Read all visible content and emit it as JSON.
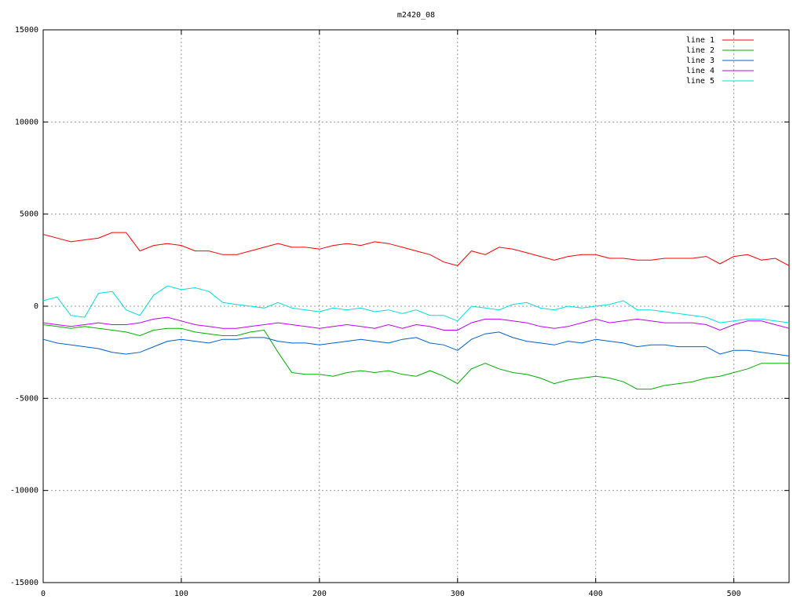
{
  "chart_data": {
    "type": "line",
    "title": "m2420_08",
    "x": [
      0,
      10,
      20,
      30,
      40,
      50,
      60,
      70,
      80,
      90,
      100,
      110,
      120,
      130,
      140,
      150,
      160,
      170,
      180,
      190,
      200,
      210,
      220,
      230,
      240,
      250,
      260,
      270,
      280,
      290,
      300,
      310,
      320,
      330,
      340,
      350,
      360,
      370,
      380,
      390,
      400,
      410,
      420,
      430,
      440,
      450,
      460,
      470,
      480,
      490,
      500,
      510,
      520,
      530,
      540
    ],
    "series": [
      {
        "name": "line 1",
        "color": "#ff0000",
        "values": [
          3900,
          3700,
          3500,
          3600,
          3700,
          4000,
          4000,
          3000,
          3300,
          3400,
          3300,
          3000,
          3000,
          2800,
          2800,
          3000,
          3200,
          3400,
          3200,
          3200,
          3100,
          3300,
          3400,
          3300,
          3500,
          3400,
          3200,
          3000,
          2800,
          2400,
          2200,
          3000,
          2800,
          3200,
          3100,
          2900,
          2700,
          2500,
          2700,
          2800,
          2800,
          2600,
          2600,
          2500,
          2500,
          2600,
          2600,
          2600,
          2700,
          2300,
          2700,
          2800,
          2500,
          2600,
          2200
        ]
      },
      {
        "name": "line 2",
        "color": "#00b000",
        "values": [
          -1000,
          -1100,
          -1200,
          -1100,
          -1200,
          -1300,
          -1400,
          -1600,
          -1300,
          -1200,
          -1200,
          -1400,
          -1500,
          -1600,
          -1600,
          -1400,
          -1300,
          -2500,
          -3600,
          -3700,
          -3700,
          -3800,
          -3600,
          -3500,
          -3600,
          -3500,
          -3700,
          -3800,
          -3500,
          -3800,
          -4200,
          -3400,
          -3100,
          -3400,
          -3600,
          -3700,
          -3900,
          -4200,
          -4000,
          -3900,
          -3800,
          -3900,
          -4100,
          -4500,
          -4500,
          -4300,
          -4200,
          -4100,
          -3900,
          -3800,
          -3600,
          -3400,
          -3100,
          -3100,
          -3100
        ]
      },
      {
        "name": "line 3",
        "color": "#0060d0",
        "values": [
          -1800,
          -2000,
          -2100,
          -2200,
          -2300,
          -2500,
          -2600,
          -2500,
          -2200,
          -1900,
          -1800,
          -1900,
          -2000,
          -1800,
          -1800,
          -1700,
          -1700,
          -1900,
          -2000,
          -2000,
          -2100,
          -2000,
          -1900,
          -1800,
          -1900,
          -2000,
          -1800,
          -1700,
          -2000,
          -2100,
          -2400,
          -1800,
          -1500,
          -1400,
          -1700,
          -1900,
          -2000,
          -2100,
          -1900,
          -2000,
          -1800,
          -1900,
          -2000,
          -2200,
          -2100,
          -2100,
          -2200,
          -2200,
          -2200,
          -2600,
          -2400,
          -2400,
          -2500,
          -2600,
          -2700
        ]
      },
      {
        "name": "line 4",
        "color": "#c000ff",
        "values": [
          -900,
          -1000,
          -1100,
          -1000,
          -900,
          -1000,
          -1000,
          -900,
          -700,
          -600,
          -800,
          -1000,
          -1100,
          -1200,
          -1200,
          -1100,
          -1000,
          -900,
          -1000,
          -1100,
          -1200,
          -1100,
          -1000,
          -1100,
          -1200,
          -1000,
          -1200,
          -1000,
          -1100,
          -1300,
          -1300,
          -900,
          -700,
          -700,
          -800,
          -900,
          -1100,
          -1200,
          -1100,
          -900,
          -700,
          -900,
          -800,
          -700,
          -800,
          -900,
          -900,
          -900,
          -1000,
          -1300,
          -1000,
          -800,
          -800,
          -1000,
          -1200
        ]
      },
      {
        "name": "line 5",
        "color": "#00e0e0",
        "values": [
          300,
          500,
          -500,
          -600,
          700,
          800,
          -200,
          -500,
          600,
          1100,
          900,
          1000,
          800,
          200,
          100,
          0,
          -100,
          200,
          -100,
          -200,
          -300,
          -100,
          -200,
          -100,
          -300,
          -200,
          -400,
          -200,
          -500,
          -500,
          -800,
          0,
          -100,
          -200,
          100,
          200,
          -100,
          -200,
          0,
          -100,
          0,
          100,
          300,
          -200,
          -200,
          -300,
          -400,
          -500,
          -600,
          -900,
          -800,
          -700,
          -700,
          -800,
          -900
        ]
      }
    ],
    "xlim": [
      0,
      540
    ],
    "xticks": [
      0,
      100,
      200,
      300,
      400,
      500
    ],
    "ylim": [
      -15000,
      15000
    ],
    "yticks": [
      -15000,
      -10000,
      -5000,
      0,
      5000,
      10000,
      15000
    ],
    "grid": true,
    "legend": "top-right"
  }
}
